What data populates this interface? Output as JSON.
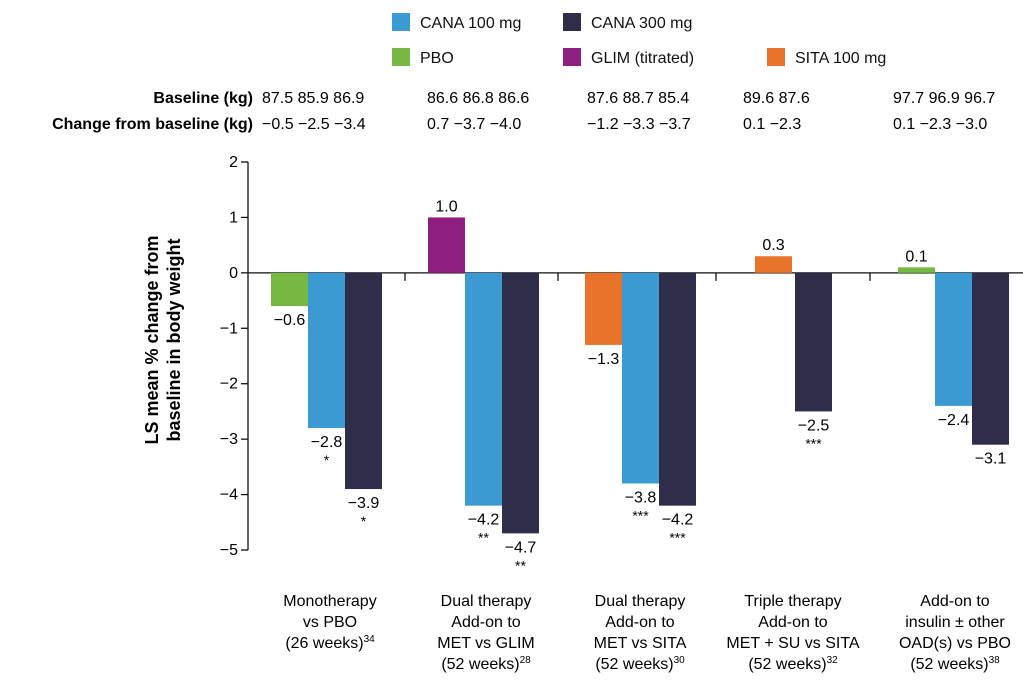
{
  "colors": {
    "PBO": "#77b843",
    "GLIM": "#8e1e80",
    "SITA": "#e8742c",
    "CANA100": "#3a9ad1",
    "CANA300": "#2e2d4a"
  },
  "legend": {
    "rows": [
      [
        {
          "key": "CANA100",
          "label": "CANA 100 mg"
        },
        {
          "key": "CANA300",
          "label": "CANA 300 mg"
        }
      ],
      [
        {
          "key": "PBO",
          "label": "PBO"
        },
        {
          "key": "GLIM",
          "label": "GLIM (titrated)"
        },
        {
          "key": "SITA",
          "label": "SITA 100 mg"
        }
      ]
    ]
  },
  "table": {
    "baseline_label": "Baseline (kg)",
    "change_label": "Change from baseline (kg)",
    "baseline": [
      "87.5 85.9 86.9",
      "86.6 86.8 86.6",
      "87.6 88.7 85.4",
      "89.6 87.6",
      "97.7 96.9 96.7"
    ],
    "change": [
      "−0.5 −2.5 −3.4",
      "0.7 −3.7 −4.0",
      "−1.2 −3.3 −3.7",
      "0.1 −2.3",
      "0.1 −2.3 −3.0"
    ]
  },
  "chart_data": {
    "type": "bar",
    "ylabel": "LS mean % change from baseline in body weight",
    "ylim": [
      -5,
      2
    ],
    "yticks": [
      "2",
      "1",
      "0",
      "−1",
      "−2",
      "−3",
      "−4",
      "−5"
    ],
    "groups": [
      {
        "label": [
          "Monotherapy",
          "vs PBO",
          "(26 weeks)"
        ],
        "ref": "34",
        "bars": [
          {
            "key": "PBO",
            "value": -0.6,
            "label": "−0.6",
            "sig": ""
          },
          {
            "key": "CANA100",
            "value": -2.8,
            "label": "−2.8",
            "sig": "*"
          },
          {
            "key": "CANA300",
            "value": -3.9,
            "label": "−3.9",
            "sig": "*"
          }
        ]
      },
      {
        "label": [
          "Dual therapy",
          "Add-on to",
          "MET vs GLIM",
          "(52 weeks)"
        ],
        "ref": "28",
        "bars": [
          {
            "key": "GLIM",
            "value": 1.0,
            "label": "1.0",
            "sig": ""
          },
          {
            "key": "CANA100",
            "value": -4.2,
            "label": "−4.2",
            "sig": "**"
          },
          {
            "key": "CANA300",
            "value": -4.7,
            "label": "−4.7",
            "sig": "**"
          }
        ]
      },
      {
        "label": [
          "Dual therapy",
          "Add-on to",
          "MET vs SITA",
          "(52 weeks)"
        ],
        "ref": "30",
        "bars": [
          {
            "key": "SITA",
            "value": -1.3,
            "label": "−1.3",
            "sig": ""
          },
          {
            "key": "CANA100",
            "value": -3.8,
            "label": "−3.8",
            "sig": "***"
          },
          {
            "key": "CANA300",
            "value": -4.2,
            "label": "−4.2",
            "sig": "***"
          }
        ]
      },
      {
        "label": [
          "Triple therapy",
          "Add-on to",
          "MET + SU vs SITA",
          "(52 weeks)"
        ],
        "ref": "32",
        "bars": [
          {
            "key": "SITA",
            "value": 0.3,
            "label": "0.3",
            "sig": ""
          },
          {
            "key": "CANA300",
            "value": -2.5,
            "label": "−2.5",
            "sig": "***"
          }
        ]
      },
      {
        "label": [
          "Add-on to",
          "insulin ± other",
          "OAD(s) vs PBO",
          "(52 weeks)"
        ],
        "ref": "38",
        "bars": [
          {
            "key": "PBO",
            "value": 0.1,
            "label": "0.1",
            "sig": ""
          },
          {
            "key": "CANA100",
            "value": -2.4,
            "label": "−2.4",
            "sig": ""
          },
          {
            "key": "CANA300",
            "value": -3.1,
            "label": "−3.1",
            "sig": ""
          }
        ]
      }
    ]
  }
}
